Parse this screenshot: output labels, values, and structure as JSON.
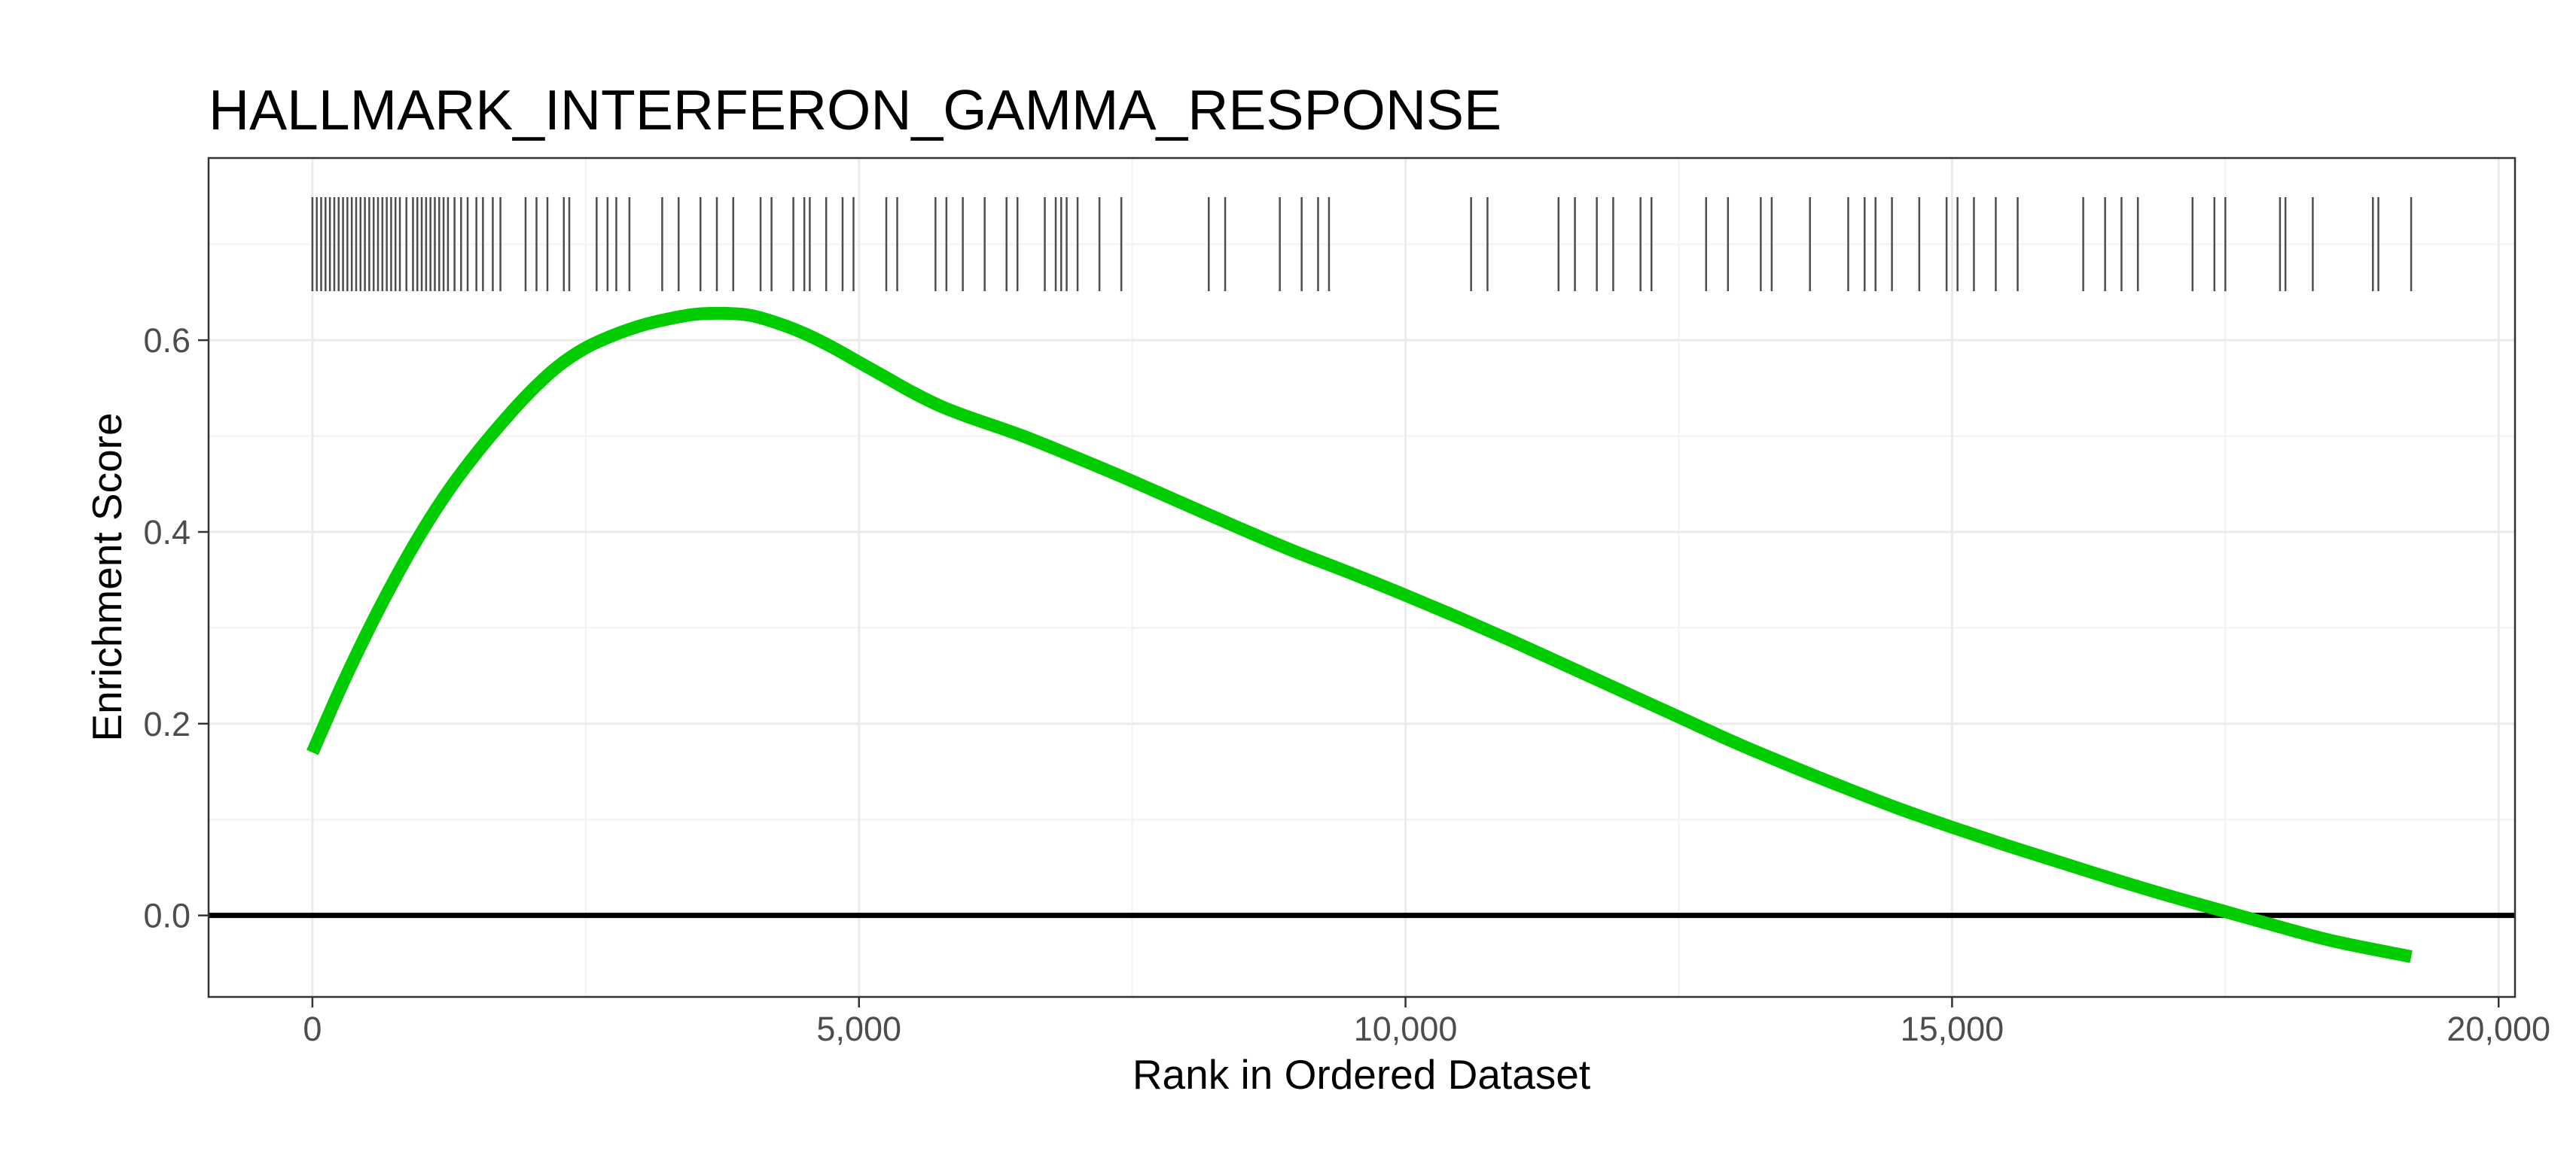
{
  "chart_data": {
    "type": "line",
    "title": "HALLMARK_INTERFERON_GAMMA_RESPONSE",
    "xlabel": "Rank in Ordered Dataset",
    "ylabel": "Enrichment Score",
    "xlim": [
      -950,
      20150
    ],
    "ylim": [
      -0.085,
      0.79
    ],
    "x_ticks": [
      0,
      5000,
      10000,
      15000,
      20000
    ],
    "x_tick_labels": [
      "0",
      "5,000",
      "10,000",
      "15,000",
      "20,000"
    ],
    "y_ticks": [
      0.0,
      0.2,
      0.4,
      0.6
    ],
    "y_tick_labels": [
      "0.0",
      "0.2",
      "0.4",
      "0.6"
    ],
    "grid": true,
    "reference_line_y": 0.0,
    "series": [
      {
        "color": "#00cc00",
        "x": [
          0,
          250,
          500,
          750,
          1000,
          1250,
          1500,
          1750,
          2000,
          2250,
          2500,
          2750,
          3000,
          3250,
          3500,
          3750,
          4000,
          4250,
          4500,
          4750,
          5000,
          5250,
          5500,
          5750,
          6000,
          6500,
          7000,
          7500,
          8000,
          8500,
          9000,
          9500,
          10000,
          10500,
          11000,
          11500,
          12000,
          12500,
          13000,
          13500,
          14000,
          14500,
          15000,
          15500,
          16000,
          16500,
          17000,
          17500,
          18000,
          18500,
          19200
        ],
        "y": [
          0.17,
          0.235,
          0.295,
          0.35,
          0.4,
          0.444,
          0.482,
          0.516,
          0.547,
          0.573,
          0.592,
          0.605,
          0.615,
          0.622,
          0.627,
          0.628,
          0.626,
          0.618,
          0.607,
          0.593,
          0.577,
          0.561,
          0.545,
          0.531,
          0.52,
          0.5,
          0.477,
          0.453,
          0.428,
          0.403,
          0.379,
          0.357,
          0.334,
          0.31,
          0.285,
          0.259,
          0.233,
          0.207,
          0.181,
          0.157,
          0.134,
          0.112,
          0.092,
          0.073,
          0.055,
          0.037,
          0.02,
          0.004,
          -0.012,
          -0.027,
          -0.043
        ]
      }
    ],
    "gene_hits": [
      0,
      40,
      80,
      120,
      160,
      200,
      240,
      280,
      320,
      360,
      400,
      440,
      480,
      520,
      560,
      600,
      640,
      680,
      720,
      760,
      800,
      860,
      920,
      960,
      1000,
      1040,
      1080,
      1120,
      1160,
      1200,
      1240,
      1300,
      1360,
      1420,
      1500,
      1560,
      1650,
      1720,
      1950,
      2050,
      2150,
      2300,
      2350,
      2600,
      2700,
      2780,
      2900,
      3200,
      3350,
      3550,
      3700,
      3850,
      4100,
      4200,
      4400,
      4500,
      4550,
      4700,
      4850,
      4950,
      5250,
      5350,
      5700,
      5800,
      5950,
      6150,
      6350,
      6450,
      6700,
      6800,
      6850,
      6900,
      7000,
      7200,
      7400,
      8200,
      8350,
      8850,
      9050,
      9200,
      9300,
      10600,
      10750,
      11400,
      11550,
      11750,
      11900,
      12150,
      12250,
      12750,
      12950,
      13250,
      13350,
      13700,
      14050,
      14200,
      14300,
      14450,
      14700,
      14950,
      15050,
      15200,
      15400,
      15600,
      16200,
      16400,
      16550,
      16700,
      17200,
      17400,
      17500,
      18000,
      18050,
      18300,
      18850,
      18900,
      19200
    ]
  }
}
